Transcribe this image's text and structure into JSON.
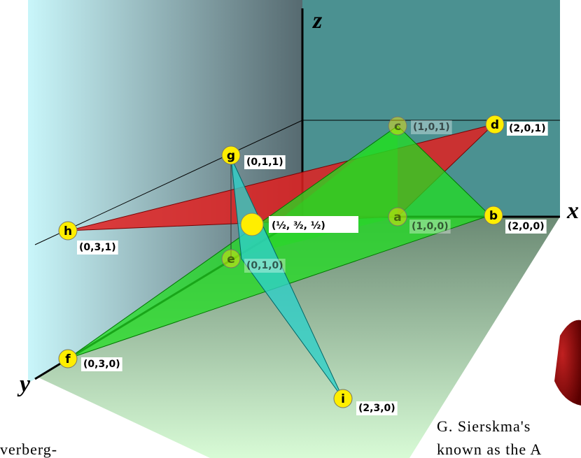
{
  "axes": {
    "x": "x",
    "y": "y",
    "z": "z"
  },
  "points": [
    {
      "letter": "a",
      "coord": "(1,0,0)"
    },
    {
      "letter": "b",
      "coord": "(2,0,0)"
    },
    {
      "letter": "c",
      "coord": "(1,0,1)"
    },
    {
      "letter": "d",
      "coord": "(2,0,1)"
    },
    {
      "letter": "e",
      "coord": "(0,1,0)"
    },
    {
      "letter": "f",
      "coord": "(0,3,0)"
    },
    {
      "letter": "g",
      "coord": "(0,1,1)"
    },
    {
      "letter": "h",
      "coord": "(0,3,1)"
    },
    {
      "letter": "i",
      "coord": "(2,3,0)"
    }
  ],
  "midpoint": "(½, ³⁄₂, ½)",
  "caption": {
    "line1": "G. Sierskma's",
    "line2": "known as the A",
    "left": "verberg-"
  }
}
